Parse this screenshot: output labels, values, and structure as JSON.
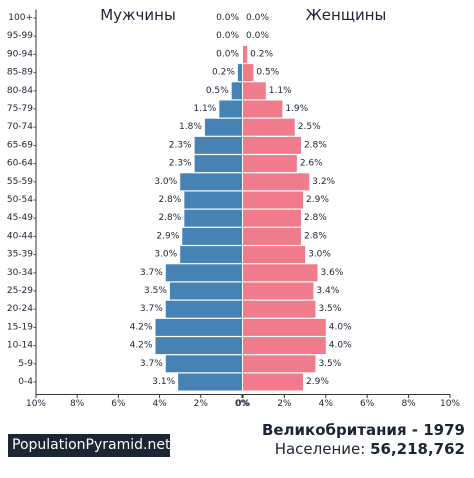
{
  "chart_data": {
    "type": "bar",
    "orientation": "horizontal-population-pyramid",
    "left_header": "Мужчины",
    "right_header": "Женщины",
    "categories": [
      "100+",
      "95-99",
      "90-94",
      "85-89",
      "80-84",
      "75-79",
      "70-74",
      "65-69",
      "60-64",
      "55-59",
      "50-54",
      "45-49",
      "40-44",
      "35-39",
      "30-34",
      "25-29",
      "20-24",
      "15-19",
      "10-14",
      "5-9",
      "0-4"
    ],
    "series": [
      {
        "name": "Мужчины",
        "side": "left",
        "color": "#4682b4",
        "values": [
          0.0,
          0.0,
          0.0,
          0.2,
          0.5,
          1.1,
          1.8,
          2.3,
          2.3,
          3.0,
          2.8,
          2.8,
          2.9,
          3.0,
          3.7,
          3.5,
          3.7,
          4.2,
          4.2,
          3.7,
          3.1
        ],
        "labels": [
          "0.0%",
          "0.0%",
          "0.0%",
          "0.2%",
          "0.5%",
          "1.1%",
          "1.8%",
          "2.3%",
          "2.3%",
          "3.0%",
          "2.8%",
          "2.8%",
          "2.9%",
          "3.0%",
          "3.7%",
          "3.5%",
          "3.7%",
          "4.2%",
          "4.2%",
          "3.7%",
          "3.1%"
        ]
      },
      {
        "name": "Женщины",
        "side": "right",
        "color": "#f07b8a",
        "values": [
          0.0,
          0.0,
          0.2,
          0.5,
          1.1,
          1.9,
          2.5,
          2.8,
          2.6,
          3.2,
          2.9,
          2.8,
          2.8,
          3.0,
          3.6,
          3.4,
          3.5,
          4.0,
          4.0,
          3.5,
          2.9
        ],
        "labels": [
          "0.0%",
          "0.0%",
          "0.2%",
          "0.5%",
          "1.1%",
          "1.9%",
          "2.5%",
          "2.8%",
          "2.6%",
          "3.2%",
          "2.9%",
          "2.8%",
          "2.8%",
          "3.0%",
          "3.6%",
          "3.4%",
          "3.5%",
          "4.0%",
          "4.0%",
          "3.5%",
          "2.9%"
        ]
      }
    ],
    "x_max": 10,
    "x_ticks": [
      10,
      8,
      6,
      4,
      2,
      0
    ],
    "x_tick_labels_left": [
      "10%",
      "8%",
      "6%",
      "4%",
      "2%",
      "0%"
    ],
    "x_tick_labels_right": [
      "0%",
      "2%",
      "4%",
      "6%",
      "8%",
      "10%"
    ],
    "grid": false,
    "legend": "none"
  },
  "footer": {
    "brand": "PopulationPyramid.net",
    "title": "Великобритания - 1979",
    "population_label": "Население:",
    "population_value": "56,218,762"
  }
}
